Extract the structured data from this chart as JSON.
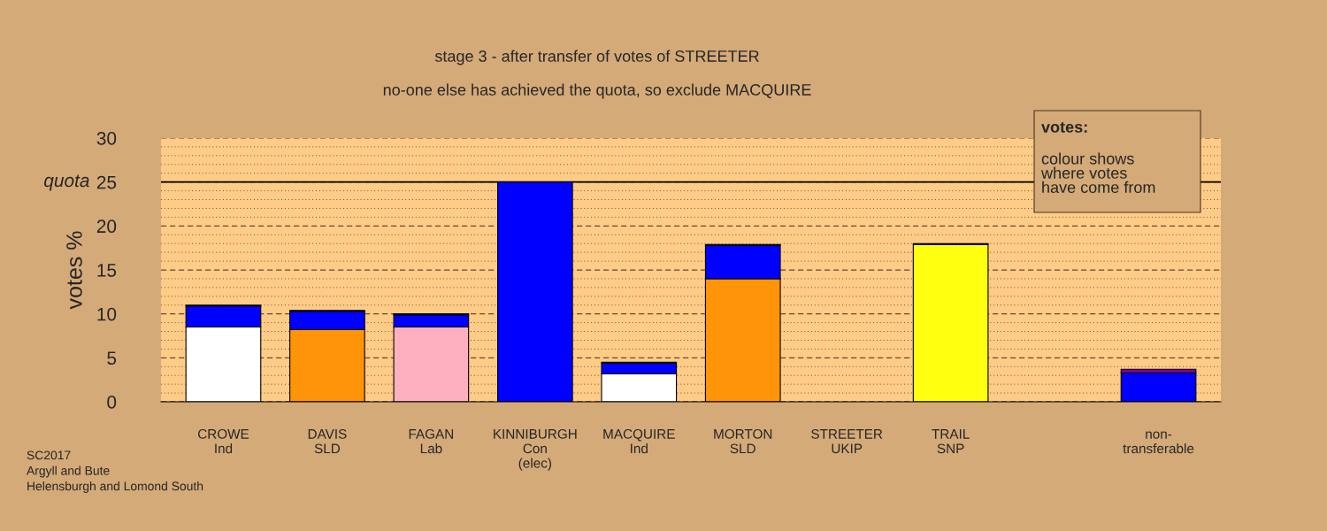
{
  "chart_data": {
    "type": "bar",
    "stacked": true,
    "title": "stage 3 - after transfer of votes of STREETER",
    "subtitle": "no-one else has achieved the quota, so exclude MACQUIRE",
    "ylabel": "votes %",
    "categories": [
      "CROWE\nInd",
      "DAVIS\nSLD",
      "FAGAN\nLab",
      "KINNIBURGH\nCon\n(elec)",
      "MACQUIRE\nInd",
      "MORTON\nSLD",
      "STREETER\nUKIP",
      "TRAIL\nSNP",
      null,
      "non-\ntransferable"
    ],
    "series": [
      {
        "colors": [
          "#ffffff",
          "#ff9408",
          "#ffb0c0",
          "#0000ff",
          "#ffffff",
          "#ff9408",
          "#7f00a0",
          "#ffff10",
          "#ffffff",
          "#ffffff"
        ],
        "values": [
          8.5,
          8.2,
          8.5,
          25,
          3.2,
          14.0,
          0,
          17.9,
          null,
          0
        ]
      },
      {
        "color": "#0000ff",
        "values": [
          2.4,
          2.1,
          1.4,
          0,
          1.2,
          3.8,
          0,
          0,
          null,
          3.3
        ]
      },
      {
        "color": "#7f00a0",
        "values": [
          0.1,
          0.1,
          0.1,
          0,
          0.1,
          0.1,
          0,
          0.1,
          null,
          0.4
        ]
      }
    ],
    "ylim": [
      0,
      30
    ],
    "yticks": [
      0,
      5,
      10,
      15,
      20,
      25,
      30
    ],
    "grid": "y",
    "ref_lines": [
      {
        "axis": "y",
        "value": 25,
        "label": "quota",
        "color": "#000000",
        "line_style": "solid"
      }
    ],
    "annotations": [
      "votes:",
      "colour shows\nwhere votes\nhave come from",
      "SC2017\nArgyll and Bute\nHelensburgh and Lomond South"
    ]
  }
}
